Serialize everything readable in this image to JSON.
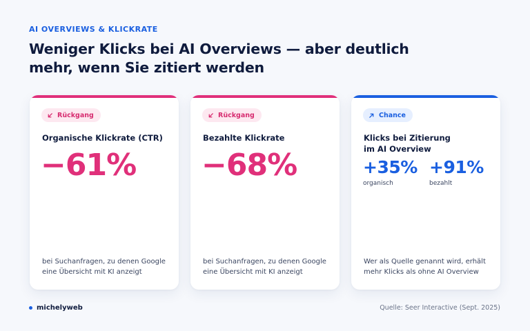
{
  "eyebrow": "AI OVERVIEWS & KLICKRATE",
  "headline": "Weniger Klicks bei AI Overviews — aber deutlich mehr, wenn Sie zitiert werden",
  "colors": {
    "pink": "#e0307a",
    "blue": "#1a5fe0",
    "navy": "#0f1b3d",
    "background": "#f6f8fc"
  },
  "cards": [
    {
      "badge": "Rückgang",
      "badge_icon": "arrow-down-left-icon",
      "title": "Organische Klickrate (CTR)",
      "value": "−61%",
      "description": "bei Suchanfragen, zu denen Google eine Übersicht mit KI anzeigt"
    },
    {
      "badge": "Rückgang",
      "badge_icon": "arrow-down-left-icon",
      "title": "Bezahlte Klickrate",
      "value": "−68%",
      "description": "bei Suchanfragen, zu denen Google eine Übersicht mit KI anzeigt"
    },
    {
      "badge": "Chance",
      "badge_icon": "arrow-up-right-icon",
      "title": "Klicks bei Zitierung im AI Overview",
      "stats": [
        {
          "value": "+35%",
          "label": "organisch"
        },
        {
          "value": "+91%",
          "label": "bezahlt"
        }
      ],
      "description": "Wer als Quelle genannt wird, erhält mehr Klicks als ohne AI Overview"
    }
  ],
  "footer": {
    "brand": "michelyweb",
    "source": "Quelle: Seer Interactive (Sept. 2025)"
  }
}
